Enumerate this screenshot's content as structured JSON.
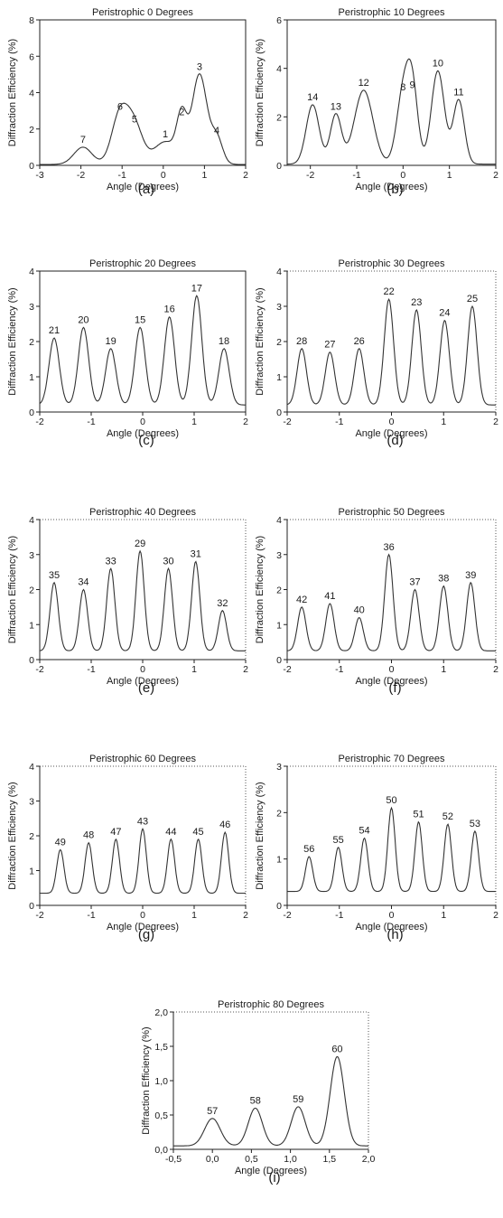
{
  "chart_data": [
    {
      "id": "a",
      "type": "line",
      "title": "Peristrophic 0 Degrees",
      "xlabel": "Angle (Degrees)",
      "ylabel": "Diffraction Efficiency (%)",
      "xlim": [
        -3,
        2
      ],
      "ylim": [
        0,
        8
      ],
      "xticks": [
        "-3",
        "-2",
        "-1",
        "0",
        "1",
        "2"
      ],
      "yticks": [
        "0",
        "2",
        "4",
        "6",
        "8"
      ],
      "baseline": 0.05,
      "peaks": [
        {
          "label": "7",
          "x": -1.95,
          "y": 1.0,
          "w": 0.22
        },
        {
          "label": "6",
          "x": -1.05,
          "y": 2.8,
          "w": 0.2
        },
        {
          "label": "5",
          "x": -0.7,
          "y": 2.1,
          "w": 0.2
        },
        {
          "label": "1",
          "x": 0.05,
          "y": 1.3,
          "w": 0.28
        },
        {
          "label": "2",
          "x": 0.45,
          "y": 2.5,
          "w": 0.12
        },
        {
          "label": "3",
          "x": 0.88,
          "y": 5.0,
          "w": 0.18
        },
        {
          "label": "4",
          "x": 1.3,
          "y": 1.5,
          "w": 0.14
        }
      ],
      "caption": "(a)"
    },
    {
      "id": "b",
      "type": "line",
      "title": "Peristrophic 10 Degrees",
      "xlabel": "Angle (Degrees)",
      "ylabel": "Diffraction Efficiency (%)",
      "xlim": [
        -2.5,
        2
      ],
      "ylim": [
        0,
        6
      ],
      "xticks": [
        "-2",
        "-1",
        "0",
        "1",
        "2"
      ],
      "xtick_vals": [
        -2,
        -1,
        0,
        1,
        2
      ],
      "yticks": [
        "0",
        "2",
        "4",
        "6"
      ],
      "baseline": 0.05,
      "peaks": [
        {
          "label": "14",
          "x": -1.95,
          "y": 2.5,
          "w": 0.14
        },
        {
          "label": "13",
          "x": -1.45,
          "y": 2.1,
          "w": 0.12
        },
        {
          "label": "12",
          "x": -0.85,
          "y": 3.1,
          "w": 0.2
        },
        {
          "label": "8",
          "x": 0.0,
          "y": 2.9,
          "w": 0.14
        },
        {
          "label": "9",
          "x": 0.2,
          "y": 3.0,
          "w": 0.12
        },
        {
          "label": "10",
          "x": 0.75,
          "y": 3.9,
          "w": 0.14
        },
        {
          "label": "11",
          "x": 1.2,
          "y": 2.7,
          "w": 0.12
        }
      ],
      "caption": "(b)"
    },
    {
      "id": "c",
      "type": "line",
      "title": "Peristrophic 20 Degrees",
      "xlabel": "Angle (Degrees)",
      "ylabel": "Diffraction Efficiency (%)",
      "xlim": [
        -2,
        2
      ],
      "ylim": [
        0,
        4
      ],
      "xticks": [
        "-2",
        "-1",
        "0",
        "1",
        "2"
      ],
      "yticks": [
        "0",
        "1",
        "2",
        "3",
        "4"
      ],
      "baseline": 0.2,
      "peaks": [
        {
          "label": "21",
          "x": -1.72,
          "y": 2.1,
          "w": 0.1
        },
        {
          "label": "20",
          "x": -1.15,
          "y": 2.4,
          "w": 0.1
        },
        {
          "label": "19",
          "x": -0.62,
          "y": 1.8,
          "w": 0.1
        },
        {
          "label": "15",
          "x": -0.05,
          "y": 2.4,
          "w": 0.1
        },
        {
          "label": "16",
          "x": 0.52,
          "y": 2.7,
          "w": 0.1
        },
        {
          "label": "17",
          "x": 1.05,
          "y": 3.3,
          "w": 0.1
        },
        {
          "label": "18",
          "x": 1.58,
          "y": 1.8,
          "w": 0.1
        }
      ],
      "caption": "(c)"
    },
    {
      "id": "d",
      "type": "line",
      "title": "Peristrophic 30 Degrees",
      "xlabel": "Angle (Degrees)",
      "ylabel": "Diffraction Efficiency (%)",
      "xlim": [
        -2,
        2
      ],
      "ylim": [
        0,
        4
      ],
      "xticks": [
        "-2",
        "-1",
        "0",
        "1",
        "2"
      ],
      "yticks": [
        "0",
        "1",
        "2",
        "3",
        "4"
      ],
      "baseline": 0.2,
      "peaks": [
        {
          "label": "28",
          "x": -1.72,
          "y": 1.8,
          "w": 0.09
        },
        {
          "label": "27",
          "x": -1.18,
          "y": 1.7,
          "w": 0.09
        },
        {
          "label": "26",
          "x": -0.62,
          "y": 1.8,
          "w": 0.09
        },
        {
          "label": "22",
          "x": -0.05,
          "y": 3.2,
          "w": 0.09
        },
        {
          "label": "23",
          "x": 0.48,
          "y": 2.9,
          "w": 0.09
        },
        {
          "label": "24",
          "x": 1.02,
          "y": 2.6,
          "w": 0.09
        },
        {
          "label": "25",
          "x": 1.55,
          "y": 3.0,
          "w": 0.09
        }
      ],
      "caption": "(d)"
    },
    {
      "id": "e",
      "type": "line",
      "title": "Peristrophic 40 Degrees",
      "xlabel": "Angle (Degrees)",
      "ylabel": "Diffraction Efficiency (%)",
      "xlim": [
        -2,
        2
      ],
      "ylim": [
        0,
        4
      ],
      "xticks": [
        "-2",
        "-1",
        "0",
        "1",
        "2"
      ],
      "yticks": [
        "0",
        "1",
        "2",
        "3",
        "4"
      ],
      "baseline": 0.25,
      "peaks": [
        {
          "label": "35",
          "x": -1.72,
          "y": 2.2,
          "w": 0.08
        },
        {
          "label": "34",
          "x": -1.15,
          "y": 2.0,
          "w": 0.08
        },
        {
          "label": "33",
          "x": -0.62,
          "y": 2.6,
          "w": 0.08
        },
        {
          "label": "29",
          "x": -0.05,
          "y": 3.1,
          "w": 0.08
        },
        {
          "label": "30",
          "x": 0.5,
          "y": 2.6,
          "w": 0.08
        },
        {
          "label": "31",
          "x": 1.03,
          "y": 2.8,
          "w": 0.08
        },
        {
          "label": "32",
          "x": 1.55,
          "y": 1.4,
          "w": 0.08
        }
      ],
      "caption": "(e)"
    },
    {
      "id": "f",
      "type": "line",
      "title": "Peristrophic 50 Degrees",
      "xlabel": "Angle (Degrees)",
      "ylabel": "Diffraction Efficiency (%)",
      "xlim": [
        -2,
        2
      ],
      "ylim": [
        0,
        4
      ],
      "xticks": [
        "-2",
        "-1",
        "0",
        "1",
        "2"
      ],
      "yticks": [
        "0",
        "1",
        "2",
        "3",
        "4"
      ],
      "baseline": 0.25,
      "peaks": [
        {
          "label": "42",
          "x": -1.72,
          "y": 1.5,
          "w": 0.08
        },
        {
          "label": "41",
          "x": -1.18,
          "y": 1.6,
          "w": 0.08
        },
        {
          "label": "40",
          "x": -0.62,
          "y": 1.2,
          "w": 0.08
        },
        {
          "label": "36",
          "x": -0.05,
          "y": 3.0,
          "w": 0.08
        },
        {
          "label": "37",
          "x": 0.45,
          "y": 2.0,
          "w": 0.08
        },
        {
          "label": "38",
          "x": 1.0,
          "y": 2.1,
          "w": 0.08
        },
        {
          "label": "39",
          "x": 1.52,
          "y": 2.2,
          "w": 0.08
        }
      ],
      "caption": "(f)"
    },
    {
      "id": "g",
      "type": "line",
      "title": "Peristrophic 60 Degrees",
      "xlabel": "Angle (Degrees)",
      "ylabel": "Diffraction Efficiency (%)",
      "xlim": [
        -2,
        2
      ],
      "ylim": [
        0,
        4
      ],
      "xticks": [
        "-2",
        "-1",
        "0",
        "1",
        "2"
      ],
      "yticks": [
        "0",
        "1",
        "2",
        "3",
        "4"
      ],
      "baseline": 0.35,
      "peaks": [
        {
          "label": "49",
          "x": -1.6,
          "y": 1.6,
          "w": 0.07
        },
        {
          "label": "48",
          "x": -1.05,
          "y": 1.8,
          "w": 0.07
        },
        {
          "label": "47",
          "x": -0.52,
          "y": 1.9,
          "w": 0.07
        },
        {
          "label": "43",
          "x": 0.0,
          "y": 2.2,
          "w": 0.07
        },
        {
          "label": "44",
          "x": 0.55,
          "y": 1.9,
          "w": 0.07
        },
        {
          "label": "45",
          "x": 1.08,
          "y": 1.9,
          "w": 0.07
        },
        {
          "label": "46",
          "x": 1.6,
          "y": 2.1,
          "w": 0.07
        }
      ],
      "caption": "(g)"
    },
    {
      "id": "h",
      "type": "line",
      "title": "Peristrophic 70 Degrees",
      "xlabel": "Angle (Degrees)",
      "ylabel": "Diffraction Efficiency (%)",
      "xlim": [
        -2,
        2
      ],
      "ylim": [
        0,
        3
      ],
      "xticks": [
        "-2",
        "-1",
        "0",
        "1",
        "2"
      ],
      "yticks": [
        "0",
        "1",
        "2",
        "3"
      ],
      "baseline": 0.3,
      "peaks": [
        {
          "label": "56",
          "x": -1.58,
          "y": 1.05,
          "w": 0.07
        },
        {
          "label": "55",
          "x": -1.02,
          "y": 1.25,
          "w": 0.07
        },
        {
          "label": "54",
          "x": -0.52,
          "y": 1.45,
          "w": 0.07
        },
        {
          "label": "50",
          "x": 0.0,
          "y": 2.1,
          "w": 0.07
        },
        {
          "label": "51",
          "x": 0.52,
          "y": 1.8,
          "w": 0.07
        },
        {
          "label": "52",
          "x": 1.08,
          "y": 1.75,
          "w": 0.07
        },
        {
          "label": "53",
          "x": 1.6,
          "y": 1.6,
          "w": 0.07
        }
      ],
      "caption": "(h)"
    },
    {
      "id": "i",
      "type": "line",
      "title": "Peristrophic 80 Degrees",
      "xlabel": "Angle (Degrees)",
      "ylabel": "Diffraction Efficiency (%)",
      "xlim": [
        -0.5,
        2.0
      ],
      "ylim": [
        0,
        2.0
      ],
      "xticks": [
        "-0,5",
        "0,0",
        "0,5",
        "1,0",
        "1,5",
        "2,0"
      ],
      "xtick_vals": [
        -0.5,
        0,
        0.5,
        1.0,
        1.5,
        2.0
      ],
      "yticks": [
        "0,0",
        "0,5",
        "1,0",
        "1,5",
        "2,0"
      ],
      "ytick_vals": [
        0,
        0.5,
        1.0,
        1.5,
        2.0
      ],
      "baseline": 0.05,
      "peaks": [
        {
          "label": "57",
          "x": 0.0,
          "y": 0.45,
          "w": 0.1
        },
        {
          "label": "58",
          "x": 0.55,
          "y": 0.6,
          "w": 0.09
        },
        {
          "label": "59",
          "x": 1.1,
          "y": 0.62,
          "w": 0.09
        },
        {
          "label": "60",
          "x": 1.6,
          "y": 1.35,
          "w": 0.09
        }
      ],
      "caption": "(i)"
    }
  ]
}
